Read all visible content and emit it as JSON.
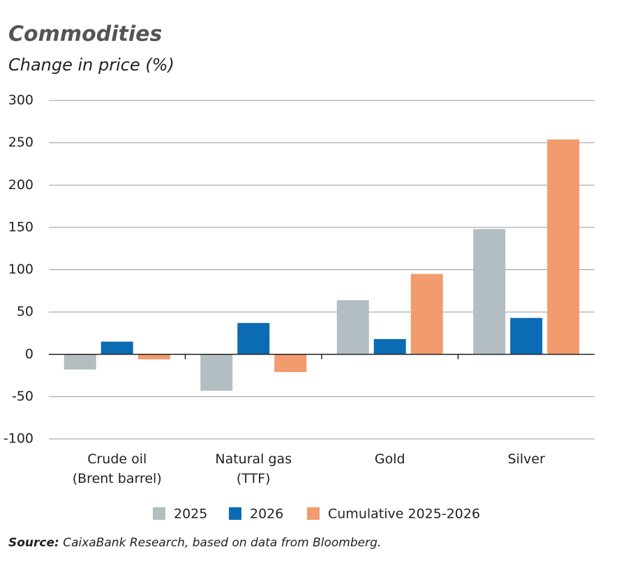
{
  "chart_data": {
    "type": "bar",
    "title": "Commodities",
    "subtitle": "Change in price (%)",
    "categories": [
      "Crude oil\n(Brent barrel)",
      "Natural gas\n(TTF)",
      "Gold",
      "Silver"
    ],
    "series": [
      {
        "name": "2025",
        "color": "#b3bec3",
        "values": [
          -18,
          -43,
          64,
          148
        ]
      },
      {
        "name": "2026",
        "color": "#0b6bb5",
        "values": [
          15,
          37,
          18,
          43
        ]
      },
      {
        "name": "Cumulative 2025-2026",
        "color": "#f29b6e",
        "values": [
          -6,
          -21,
          95,
          254
        ]
      }
    ],
    "ylim": [
      -100,
      300
    ],
    "yticks": [
      -100,
      -50,
      0,
      50,
      100,
      150,
      200,
      250,
      300
    ],
    "grid": true,
    "source_label": "Source:",
    "source_text": "CaixaBank Research, based on data from Bloomberg."
  }
}
